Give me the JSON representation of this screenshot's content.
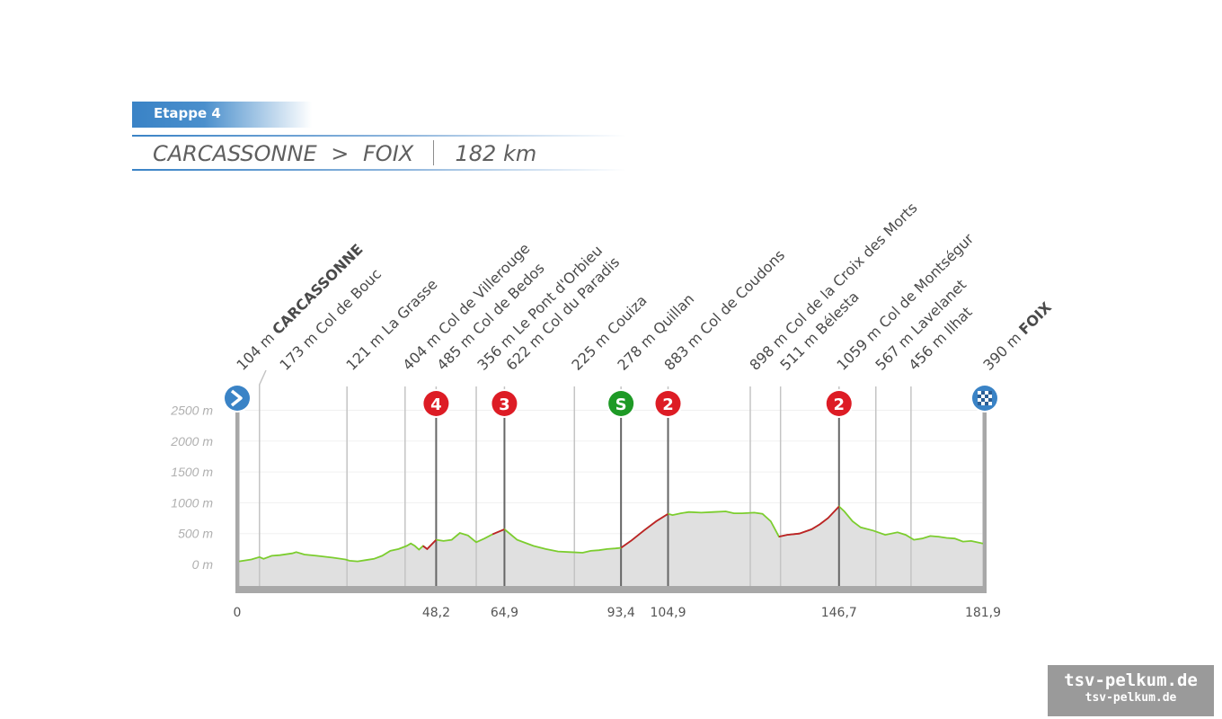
{
  "header": {
    "stage_label": "Etappe 4",
    "start": "CARCASSONNE",
    "arrow": ">",
    "finish": "FOIX",
    "distance": "182 km"
  },
  "colors": {
    "accent": "#3a83c6",
    "climb": "#c0202a",
    "flat": "#7ccd2f",
    "sprint": "#1e9a26",
    "fill": "#e0e0e0",
    "axis": "#a8a8a8"
  },
  "chart_data": {
    "type": "area",
    "xlim": [
      0,
      181.9
    ],
    "ylim": [
      0,
      2500
    ],
    "y_ticks": [
      "0 m",
      "500 m",
      "1000 m",
      "1500 m",
      "2000 m",
      "2500 m"
    ],
    "x_ticks": [
      "0",
      "48,2",
      "64,9",
      "93,4",
      "104,9",
      "146,7",
      "181,9"
    ],
    "profile": [
      [
        0,
        50
      ],
      [
        3,
        80
      ],
      [
        5,
        120
      ],
      [
        6,
        90
      ],
      [
        8,
        140
      ],
      [
        10,
        150
      ],
      [
        13,
        180
      ],
      [
        14,
        200
      ],
      [
        16,
        160
      ],
      [
        19,
        140
      ],
      [
        23,
        110
      ],
      [
        26,
        80
      ],
      [
        27,
        60
      ],
      [
        29,
        50
      ],
      [
        31,
        70
      ],
      [
        33,
        90
      ],
      [
        35,
        140
      ],
      [
        37,
        220
      ],
      [
        39,
        250
      ],
      [
        41,
        300
      ],
      [
        42,
        340
      ],
      [
        43,
        300
      ],
      [
        44,
        240
      ],
      [
        45,
        300
      ],
      [
        46,
        250
      ],
      [
        48.2,
        400
      ],
      [
        50,
        380
      ],
      [
        52,
        400
      ],
      [
        54,
        510
      ],
      [
        56,
        470
      ],
      [
        58,
        360
      ],
      [
        60,
        420
      ],
      [
        62,
        490
      ],
      [
        64.9,
        570
      ],
      [
        66,
        510
      ],
      [
        68,
        400
      ],
      [
        70,
        350
      ],
      [
        72,
        300
      ],
      [
        75,
        250
      ],
      [
        78,
        210
      ],
      [
        81,
        200
      ],
      [
        84,
        190
      ],
      [
        86,
        220
      ],
      [
        88,
        230
      ],
      [
        90,
        250
      ],
      [
        92,
        260
      ],
      [
        93.4,
        270
      ],
      [
        96,
        390
      ],
      [
        99,
        550
      ],
      [
        102,
        700
      ],
      [
        104.9,
        820
      ],
      [
        106,
        800
      ],
      [
        108,
        830
      ],
      [
        110,
        850
      ],
      [
        113,
        840
      ],
      [
        116,
        850
      ],
      [
        119,
        860
      ],
      [
        121,
        830
      ],
      [
        123,
        830
      ],
      [
        126,
        840
      ],
      [
        128,
        820
      ],
      [
        130,
        700
      ],
      [
        132,
        450
      ],
      [
        134,
        480
      ],
      [
        137,
        500
      ],
      [
        140,
        570
      ],
      [
        142,
        650
      ],
      [
        144,
        750
      ],
      [
        146.7,
        940
      ],
      [
        148,
        860
      ],
      [
        150,
        700
      ],
      [
        152,
        600
      ],
      [
        155,
        550
      ],
      [
        158,
        480
      ],
      [
        161,
        520
      ],
      [
        163,
        480
      ],
      [
        165,
        400
      ],
      [
        167,
        420
      ],
      [
        169,
        460
      ],
      [
        171,
        450
      ],
      [
        173,
        430
      ],
      [
        175,
        420
      ],
      [
        177,
        370
      ],
      [
        179,
        380
      ],
      [
        181.9,
        340
      ]
    ],
    "waypoints": [
      {
        "km": 0,
        "label": "104 m CARCASSONNE",
        "prefix": "104 m ",
        "name": "CARCASSONNE",
        "bold": true
      },
      {
        "km": 5,
        "label": "173 m Col de Bouc"
      },
      {
        "km": 26.4,
        "label": "121 m La Grasse"
      },
      {
        "km": 40.6,
        "label": "404 m Col de Villerouge"
      },
      {
        "km": 48.2,
        "label": "485 m Col de Bedos"
      },
      {
        "km": 58,
        "label": "356 m Le Pont d'Orbieu"
      },
      {
        "km": 64.9,
        "label": "622 m Col du Paradis"
      },
      {
        "km": 82,
        "label": "225 m Couiza"
      },
      {
        "km": 93.4,
        "label": "278 m Quillan"
      },
      {
        "km": 104.9,
        "label": "883 m Col de Coudons"
      },
      {
        "km": 125,
        "label": "898 m Col de la Croix des Morts"
      },
      {
        "km": 132.4,
        "label": "511 m Bélesta"
      },
      {
        "km": 146.7,
        "label": "1059 m Col de Montségur"
      },
      {
        "km": 155.7,
        "label": "567 m Lavelanet"
      },
      {
        "km": 164.3,
        "label": "456 m Ilhat"
      },
      {
        "km": 181.9,
        "label": "390 m FOIX",
        "prefix": "390 m ",
        "name": "FOIX",
        "bold": true
      }
    ],
    "climbs": [
      {
        "km": 48.2,
        "label": "4",
        "color": "#dd1c25"
      },
      {
        "km": 64.9,
        "label": "3",
        "color": "#dd1c25"
      },
      {
        "km": 93.4,
        "label": "S",
        "color": "#1e9a26"
      },
      {
        "km": 104.9,
        "label": "2",
        "color": "#dd1c25"
      },
      {
        "km": 146.7,
        "label": "2",
        "color": "#dd1c25"
      }
    ],
    "climb_segments": [
      [
        45,
        48.2
      ],
      [
        61,
        64.9
      ],
      [
        93.4,
        104.9
      ],
      [
        132,
        146.7
      ]
    ]
  },
  "watermark": {
    "line1": "tsv-pelkum.de",
    "line2": "tsv-pelkum.de"
  }
}
